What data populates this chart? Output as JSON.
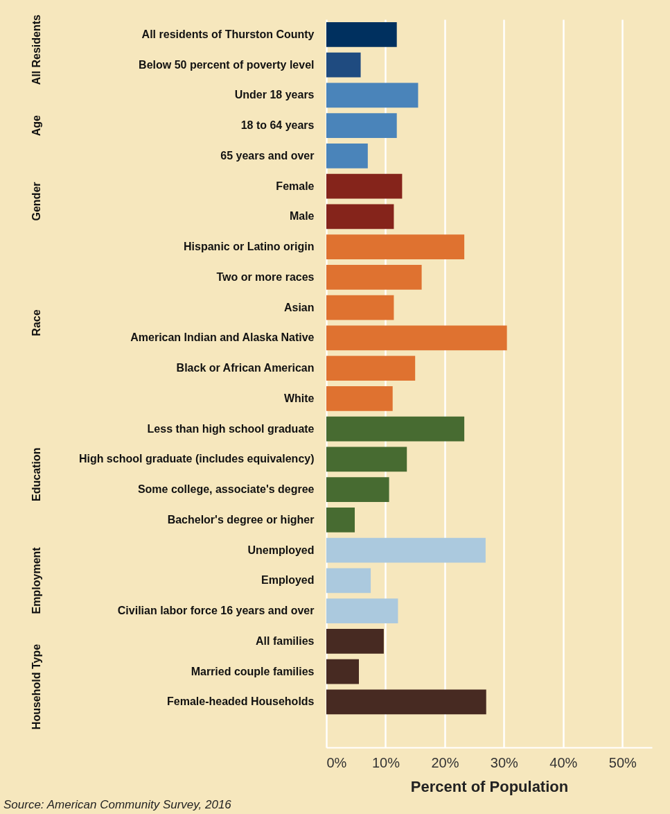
{
  "chart_data": {
    "type": "bar",
    "orientation": "horizontal",
    "xlabel": "Percent of Population",
    "categories": [
      "All residents of Thurston County",
      "Below 50 percent of poverty level",
      "Under 18 years",
      "18 to 64 years",
      "65 years and over",
      "Female",
      "Male",
      "Hispanic or Latino origin",
      "Two or more races",
      "Asian",
      "American Indian and Alaska Native",
      "Black or African American",
      "White",
      "Less than high school graduate",
      "High school graduate (includes equivalency)",
      "Some college, associate's degree",
      "Bachelor's degree or higher",
      "Unemployed",
      "Employed",
      "Civilian labor force 16 years and over",
      "All families",
      "Married couple families",
      "Female-headed Households",
      null
    ],
    "values": [
      11.9,
      5.8,
      15.5,
      11.9,
      7.0,
      12.8,
      11.4,
      23.3,
      16.1,
      11.4,
      30.5,
      15.0,
      11.2,
      23.3,
      13.6,
      10.6,
      4.8,
      26.9,
      7.5,
      12.1,
      9.7,
      5.5,
      27.0,
      null
    ],
    "colors": [
      "#00305f",
      "#1f4b80",
      "#4a84ba",
      "#4a84ba",
      "#4a84ba",
      "#85241b",
      "#85241b",
      "#df7230",
      "#df7230",
      "#df7230",
      "#df7230",
      "#df7230",
      "#df7230",
      "#476b31",
      "#476b31",
      "#476b31",
      "#476b31",
      "#abc9de",
      "#abc9de",
      "#abc9de",
      "#472a22",
      "#472a22",
      "#472a22",
      "#472a22"
    ],
    "xlim": [
      0,
      55
    ],
    "xticks": [
      {
        "value": 0,
        "label": "0%"
      },
      {
        "value": 10,
        "label": "10%"
      },
      {
        "value": 20,
        "label": "20%"
      },
      {
        "value": 30,
        "label": "30%"
      },
      {
        "value": 40,
        "label": "40%"
      },
      {
        "value": 50,
        "label": "50%"
      }
    ],
    "grid": "x",
    "annotations": [
      "All Residents",
      "Age",
      "Gender",
      "Race",
      "Education",
      "Employment",
      "Household Type",
      "Source: American Community Survey, 2016"
    ]
  }
}
